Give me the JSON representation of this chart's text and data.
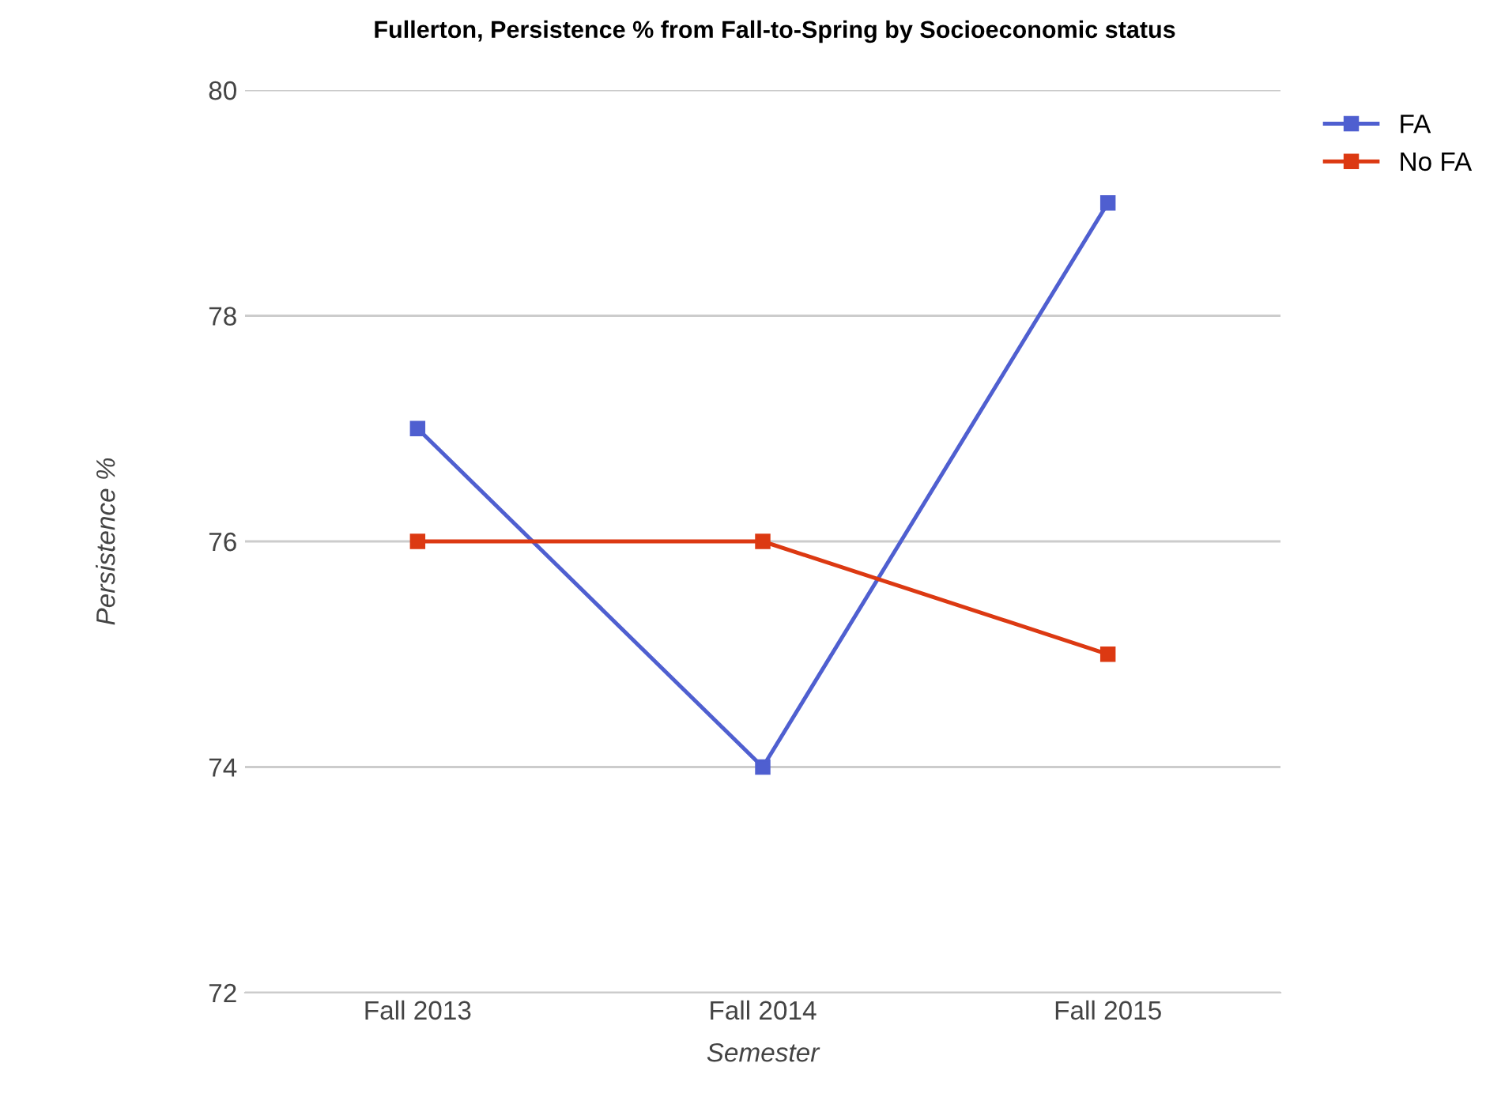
{
  "chart_data": {
    "type": "line",
    "title": "Fullerton, Persistence % from Fall-to-Spring by Socioeconomic status",
    "xlabel": "Semester",
    "ylabel": "Persistence %",
    "categories": [
      "Fall 2013",
      "Fall 2014",
      "Fall 2015"
    ],
    "series": [
      {
        "name": "FA",
        "color": "#4f5fd0",
        "values": [
          77,
          74,
          79
        ]
      },
      {
        "name": "No FA",
        "color": "#dc3912",
        "values": [
          76,
          76,
          75
        ]
      }
    ],
    "ylim": [
      72,
      80
    ],
    "yticks": [
      72,
      74,
      76,
      78,
      80
    ],
    "grid": "y",
    "legend": "top right",
    "marker": "square",
    "line_style": "solid"
  }
}
